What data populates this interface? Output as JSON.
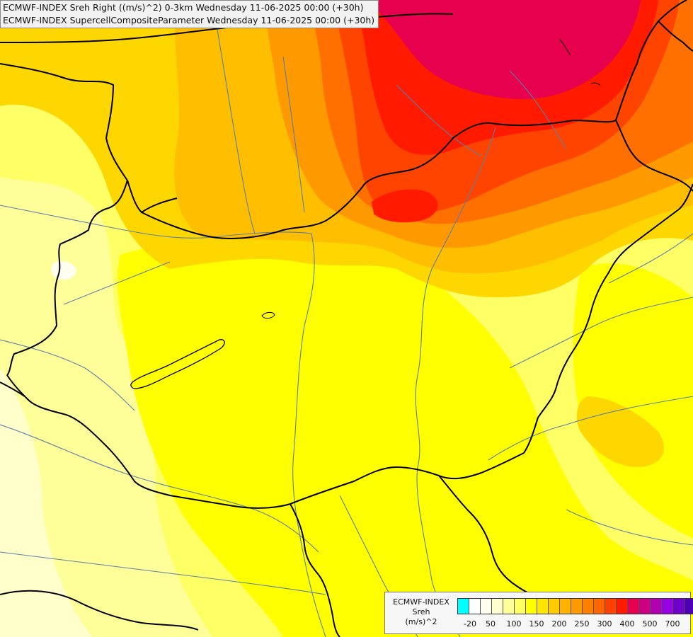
{
  "header": {
    "line1": "ECMWF-INDEX Sreh Right ((m/s)^2) 0-3km Wednesday 11-06-2025 00:00 (+30h)",
    "line2": "ECMWF-INDEX SupercellCompositeParameter Wednesday 11-06-2025 00:00 (+30h)"
  },
  "legend": {
    "line1": "ECMWF-INDEX",
    "line2": "Sreh",
    "line3": "(m/s)^2",
    "colors": [
      "#00ffff",
      "#ffffff",
      "#fffff0",
      "#ffffd0",
      "#ffff99",
      "#ffff66",
      "#ffff00",
      "#ffe600",
      "#ffcc00",
      "#ffb300",
      "#ff9900",
      "#ff8000",
      "#ff6600",
      "#ff4000",
      "#ff1a00",
      "#e6004d",
      "#cc0080",
      "#b000b0",
      "#9900e6",
      "#7000cc",
      "#4d00b3",
      "#000080"
    ],
    "ticks": [
      "-20",
      "50",
      "100",
      "150",
      "200",
      "250",
      "300",
      "400",
      "500",
      "700"
    ]
  },
  "map": {
    "field_colors": {
      "pale": "#ffff99",
      "light": "#ffff66",
      "base": "#ffff00",
      "gold": "#ffd700",
      "amber": "#ffbf00",
      "orange": "#ff9900",
      "dark_orange": "#ff7000",
      "red_orange": "#ff4400",
      "red": "#ff1a00",
      "crimson": "#e6004d"
    },
    "border_color": "#000000",
    "river_color": "#5a7fa8"
  }
}
